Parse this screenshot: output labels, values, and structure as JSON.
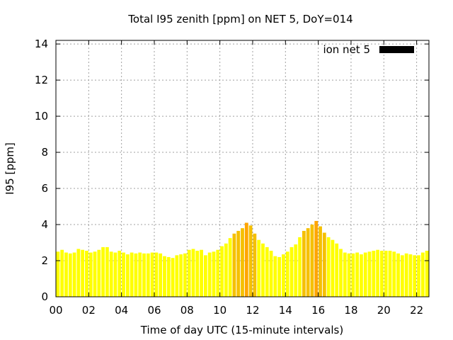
{
  "chart_data": {
    "type": "bar",
    "title": "Total I95 zenith [ppm] on NET 5, DoY=014",
    "xlabel": "Time of day UTC (15-minute intervals)",
    "ylabel": "I95 [ppm]",
    "xlim": [
      0,
      22.75
    ],
    "ylim": [
      0,
      14.2
    ],
    "x_ticks": [
      "00",
      "02",
      "04",
      "06",
      "08",
      "10",
      "12",
      "14",
      "16",
      "18",
      "20",
      "22"
    ],
    "y_ticks": [
      "0",
      "2",
      "4",
      "6",
      "8",
      "10",
      "12",
      "14"
    ],
    "grid": true,
    "legend": {
      "position": "top-right",
      "entries": [
        {
          "label": "ion net 5",
          "color": "#000000"
        }
      ]
    },
    "bar_interval_hours": 0.25,
    "series": [
      {
        "name": "ion net 5",
        "x_start": 0.0,
        "values": [
          2.5,
          2.6,
          2.45,
          2.4,
          2.45,
          2.65,
          2.6,
          2.55,
          2.45,
          2.5,
          2.6,
          2.75,
          2.75,
          2.5,
          2.45,
          2.55,
          2.45,
          2.35,
          2.45,
          2.4,
          2.45,
          2.4,
          2.4,
          2.45,
          2.45,
          2.4,
          2.25,
          2.2,
          2.15,
          2.3,
          2.35,
          2.4,
          2.6,
          2.65,
          2.55,
          2.6,
          2.3,
          2.45,
          2.5,
          2.6,
          2.8,
          2.95,
          3.25,
          3.5,
          3.65,
          3.8,
          4.1,
          3.95,
          3.5,
          3.15,
          2.95,
          2.75,
          2.55,
          2.25,
          2.2,
          2.35,
          2.5,
          2.75,
          2.9,
          3.3,
          3.65,
          3.8,
          4.0,
          4.2,
          3.9,
          3.55,
          3.3,
          3.15,
          2.95,
          2.65,
          2.45,
          2.4,
          2.4,
          2.45,
          2.35,
          2.45,
          2.5,
          2.55,
          2.6,
          2.55,
          2.55,
          2.55,
          2.5,
          2.4,
          2.3,
          2.4,
          2.35,
          2.3,
          2.3,
          2.45,
          2.55
        ],
        "colors": {
          "normal": "#ffff00",
          "elevated": "#f5c000",
          "high": "#ffa500"
        },
        "color_thresholds": {
          "elevated_above": 3.3,
          "high_above": 4.0
        }
      }
    ]
  }
}
